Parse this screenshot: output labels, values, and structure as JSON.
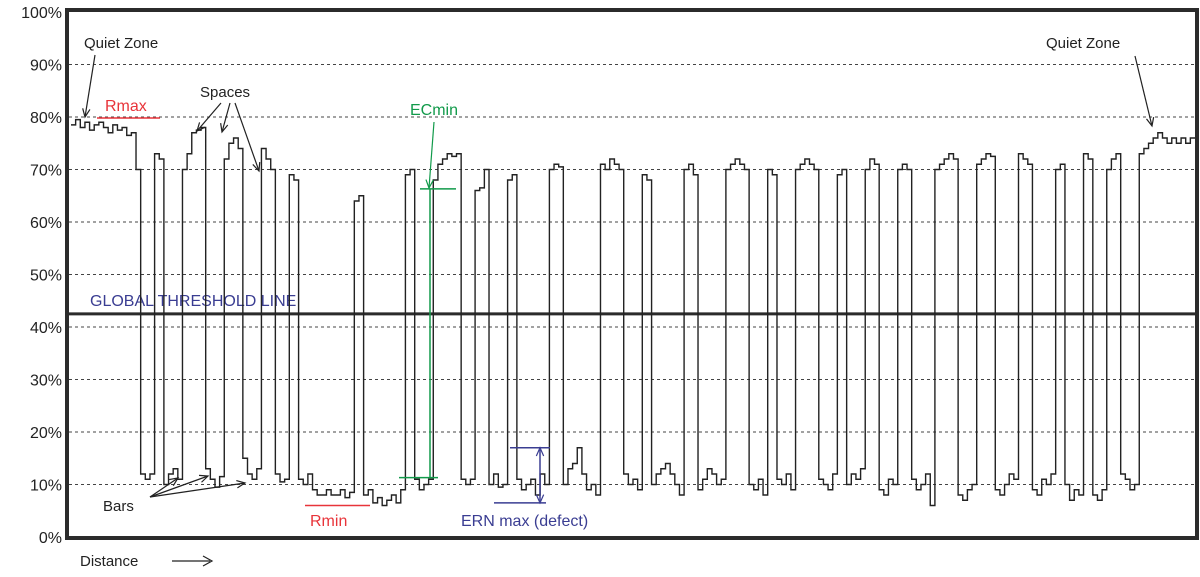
{
  "chart_data": {
    "type": "line",
    "title": "",
    "xlabel": "Distance",
    "ylabel": "",
    "y_ticks": [
      "0%",
      "10%",
      "20%",
      "30%",
      "40%",
      "50%",
      "60%",
      "70%",
      "80%",
      "90%",
      "100%"
    ],
    "ylim": [
      0,
      100
    ],
    "grid": "horizontal dashed",
    "threshold": {
      "label": "GLOBAL THRESHOLD LINE",
      "value": 42.5
    },
    "colors": {
      "trace": "#222222",
      "red": "#e8343a",
      "green": "#119a4a",
      "blue": "#3a3d92",
      "frame": "#2b2b2b",
      "grid": "#444444"
    },
    "series": [
      {
        "values": [
          78.5,
          79.5,
          78,
          79,
          77.5,
          78.5,
          79,
          78,
          77,
          78.5,
          77.5,
          78,
          76.5,
          77,
          70,
          12,
          11,
          12,
          73,
          72,
          10,
          12,
          13,
          11,
          70,
          73,
          77,
          77.5,
          78,
          13,
          11,
          9.5,
          11.5,
          72,
          75,
          76,
          74,
          15,
          12,
          11,
          13,
          74,
          72,
          70,
          12,
          10.5,
          11,
          69,
          68,
          11,
          10,
          12,
          9,
          8,
          8,
          9,
          8,
          8,
          9,
          7.5,
          8.5,
          64,
          65,
          8,
          9,
          6.5,
          7.5,
          6,
          7,
          8,
          6.5,
          9,
          69,
          70,
          11,
          9,
          10,
          11,
          68,
          71,
          72,
          73,
          72.5,
          73,
          11,
          10,
          11,
          66,
          66.5,
          70,
          10,
          12,
          9.5,
          10,
          68,
          69,
          11,
          9,
          10,
          11,
          8,
          12,
          10,
          70,
          71,
          70.5,
          10,
          13,
          14,
          17,
          12,
          9,
          10,
          8,
          71,
          70,
          72,
          71,
          70,
          12,
          10,
          11,
          9,
          69,
          68,
          10,
          12,
          13,
          14,
          12,
          10,
          8,
          70,
          71,
          69,
          9,
          11,
          13,
          12,
          10,
          11,
          70,
          71,
          72,
          71,
          70,
          10,
          9,
          11,
          8,
          70,
          69,
          11,
          10,
          12,
          9,
          70,
          71,
          72,
          71,
          70,
          11,
          10,
          9,
          12,
          69,
          70,
          10,
          12,
          11,
          13,
          70,
          72,
          71,
          9,
          8,
          11,
          10,
          70,
          71,
          70,
          11,
          9,
          10,
          12,
          6,
          70,
          71,
          72,
          73,
          72,
          8,
          7,
          9,
          10,
          71,
          72,
          73,
          72.5,
          9,
          8,
          10,
          12,
          11,
          73,
          72,
          71,
          9,
          8,
          11,
          10,
          12,
          70,
          71,
          10,
          7,
          9,
          8,
          73,
          72,
          8,
          7,
          9,
          70,
          72,
          73,
          12,
          11,
          9,
          10,
          73,
          74,
          75,
          76,
          77,
          76,
          75,
          76,
          75,
          76,
          75,
          76
        ]
      }
    ],
    "annotations": {
      "quiet_zone": "Quiet Zone",
      "spaces": "Spaces",
      "bars": "Bars",
      "rmax": "Rmax",
      "rmin": "Rmin",
      "ecmin": "ECmin",
      "ern_max": "ERN max (defect)"
    }
  }
}
